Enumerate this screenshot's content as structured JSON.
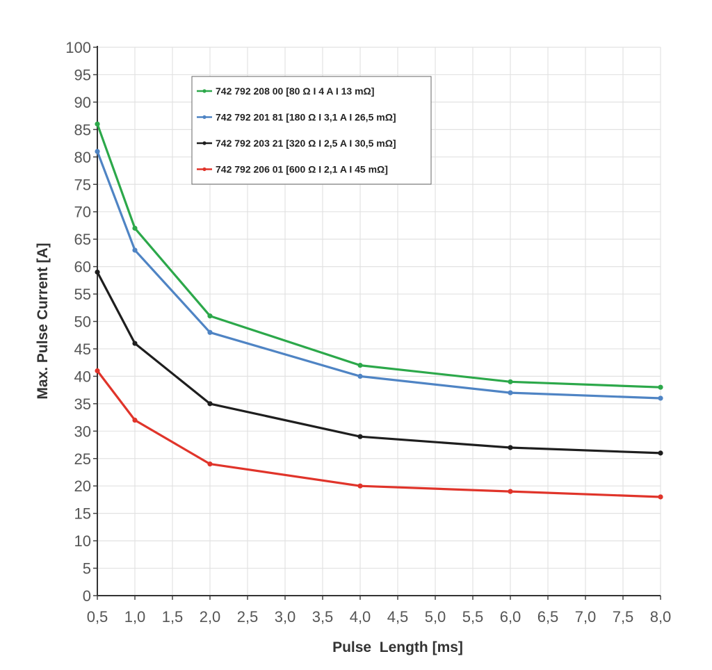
{
  "chart_data": {
    "type": "line",
    "xlabel": "Pulse  Length [ms]",
    "ylabel": "Max. Pulse Current [A]",
    "xlim": [
      0.5,
      8.0
    ],
    "ylim": [
      0,
      100
    ],
    "x_ticks": [
      "0,5",
      "1,0",
      "1,5",
      "2,0",
      "2,5",
      "3,0",
      "3,5",
      "4,0",
      "4,5",
      "5,0",
      "5,5",
      "6,0",
      "6,5",
      "7,0",
      "7,5",
      "8,0"
    ],
    "y_ticks": [
      "0",
      "5",
      "10",
      "15",
      "20",
      "25",
      "30",
      "35",
      "40",
      "45",
      "50",
      "55",
      "60",
      "65",
      "70",
      "75",
      "80",
      "85",
      "90",
      "95",
      "100"
    ],
    "grid": true,
    "legend_position": "top-left",
    "x": [
      0.5,
      1.0,
      2.0,
      4.0,
      6.0,
      8.0
    ],
    "series": [
      {
        "name": "742 792 208 00 [80 Ω I 4 A I 13 mΩ]",
        "color": "#2ca84a",
        "values": [
          86,
          67,
          51,
          42,
          39,
          38
        ]
      },
      {
        "name": "742 792 201 81 [180 Ω I 3,1 A I 26,5 mΩ]",
        "color": "#4f84c4",
        "values": [
          81,
          63,
          48,
          40,
          37,
          36
        ]
      },
      {
        "name": "742 792 203 21 [320 Ω I 2,5 A I 30,5 mΩ]",
        "color": "#1e1e1e",
        "values": [
          59,
          46,
          35,
          29,
          27,
          26
        ]
      },
      {
        "name": "742 792 206 01 [600 Ω I 2,1 A I 45 mΩ]",
        "color": "#e0342a",
        "values": [
          41,
          32,
          24,
          20,
          19,
          18
        ]
      }
    ]
  }
}
